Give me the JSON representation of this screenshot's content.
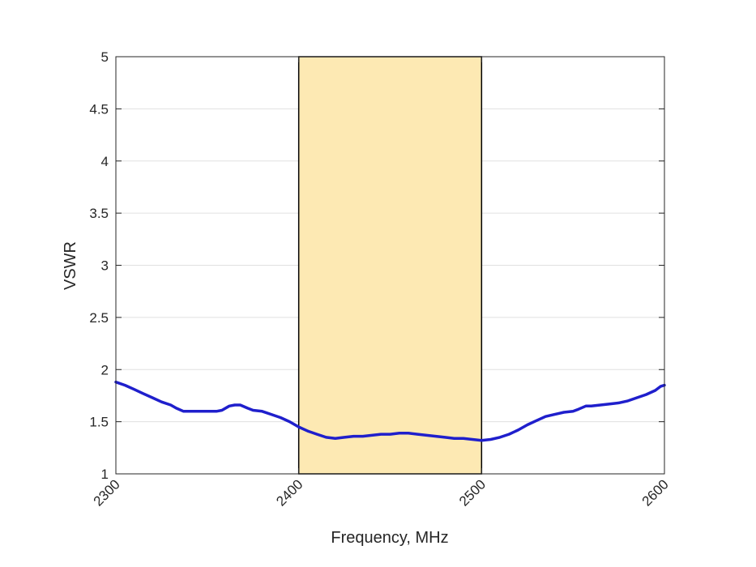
{
  "chart_data": {
    "type": "line",
    "title": "",
    "xlabel": "Frequency, MHz",
    "ylabel": "VSWR",
    "xlim": [
      2300,
      2600
    ],
    "ylim": [
      1,
      5
    ],
    "xticks": [
      2300,
      2400,
      2500,
      2600
    ],
    "xtick_labels": [
      "2300",
      "2400",
      "2500",
      "2600"
    ],
    "yticks": [
      1,
      1.5,
      2,
      2.5,
      3,
      3.5,
      4,
      4.5,
      5
    ],
    "ytick_labels": [
      "1",
      "1.5",
      "2",
      "2.5",
      "3",
      "3.5",
      "4",
      "4.5",
      "5"
    ],
    "grid": "horizontal",
    "highlight_band": {
      "x_start": 2400,
      "x_end": 2500,
      "color": "#fde9b3"
    },
    "series": [
      {
        "color": "#1f1fcc",
        "x": [
          2300,
          2305,
          2310,
          2315,
          2320,
          2325,
          2330,
          2333,
          2337,
          2340,
          2345,
          2350,
          2355,
          2358,
          2362,
          2365,
          2368,
          2372,
          2375,
          2380,
          2385,
          2390,
          2395,
          2400,
          2405,
          2410,
          2415,
          2420,
          2425,
          2430,
          2435,
          2440,
          2445,
          2450,
          2455,
          2460,
          2465,
          2470,
          2475,
          2480,
          2485,
          2490,
          2495,
          2500,
          2505,
          2510,
          2515,
          2520,
          2525,
          2530,
          2535,
          2540,
          2545,
          2550,
          2553,
          2557,
          2560,
          2565,
          2570,
          2575,
          2580,
          2585,
          2590,
          2595,
          2598,
          2600
        ],
        "y": [
          1.88,
          1.85,
          1.81,
          1.77,
          1.73,
          1.69,
          1.66,
          1.63,
          1.6,
          1.6,
          1.6,
          1.6,
          1.6,
          1.61,
          1.65,
          1.66,
          1.66,
          1.63,
          1.61,
          1.6,
          1.57,
          1.54,
          1.5,
          1.45,
          1.41,
          1.38,
          1.35,
          1.34,
          1.35,
          1.36,
          1.36,
          1.37,
          1.38,
          1.38,
          1.39,
          1.39,
          1.38,
          1.37,
          1.36,
          1.35,
          1.34,
          1.34,
          1.33,
          1.32,
          1.33,
          1.35,
          1.38,
          1.42,
          1.47,
          1.51,
          1.55,
          1.57,
          1.59,
          1.6,
          1.62,
          1.65,
          1.65,
          1.66,
          1.67,
          1.68,
          1.7,
          1.73,
          1.76,
          1.8,
          1.84,
          1.85
        ]
      }
    ]
  }
}
